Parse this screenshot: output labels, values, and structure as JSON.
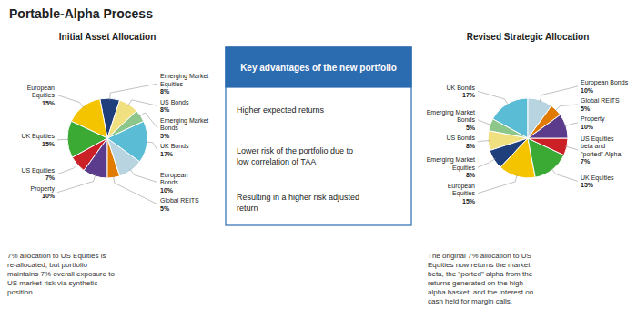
{
  "title": "Portable-Alpha Process",
  "annotations": [
    "Key advantages of the new portfolio",
    "Higher expected returns",
    "Lower risk of the portfolio due to\nlow correlation of TAA",
    "Resulting in a higher risk adjusted\nreturn"
  ],
  "chart_data": [
    {
      "type": "pie",
      "title": "Initial Asset Allocation",
      "categories": [
        "Emerging Market\nEquities",
        "European\nEquities",
        "UK Equities",
        "US Equities",
        "Property",
        "Global REITS",
        "European\nBonds",
        "UK Bonds",
        "Emerging Market\nBonds",
        "US Bonds"
      ],
      "values": [
        8,
        15,
        15,
        7,
        10,
        5,
        10,
        17,
        5,
        8
      ],
      "value_labels": [
        "8%",
        "15%",
        "15%",
        "7%",
        "10%",
        "5%",
        "10%",
        "17%",
        "5%",
        "8%"
      ],
      "colors": [
        "#1f3e7c",
        "#f5c400",
        "#3aaa35",
        "#cc2027",
        "#5b3b8c",
        "#e07b00",
        "#b8d4e0",
        "#5bbcd6",
        "#8dc68a",
        "#f0e080"
      ],
      "data_labels": true,
      "annotations": [
        "7% allocation to US Equities is\nre-allocated, but portfolio\nmaintains 7% overall exposure to\nUS market-risk via synthetic\nposition."
      ]
    },
    {
      "type": "pie",
      "title": "Revised Strategic Allocation",
      "categories": [
        "UK Bonds",
        "Emerging Market\nBonds",
        "US Bonds",
        "Emerging Market\nEquities",
        "European\nEquities",
        "UK Equities",
        "US Equities\nbeta and\n\"ported\" Alpha",
        "Property",
        "Global REITS",
        "European Bonds"
      ],
      "values": [
        17,
        5,
        8,
        8,
        15,
        15,
        7,
        10,
        5,
        10
      ],
      "value_labels": [
        "17%",
        "5%",
        "8%",
        "8%",
        "15%",
        "15%",
        "7%",
        "10%",
        "5%",
        "10%"
      ],
      "colors": [
        "#5bbcd6",
        "#8dc68a",
        "#f0e080",
        "#1f3e7c",
        "#f5c400",
        "#3aaa35",
        "#cc2027",
        "#5b3b8c",
        "#e07b00",
        "#b8d4e0"
      ],
      "data_labels": true,
      "annotations": [
        "The original 7% allocation to US\nEquities now returns the market\nbeta, the \"ported\" alpha from the\nreturns generated on the high\nalpha basket, and the interest on\ncash held for margin calls."
      ]
    }
  ]
}
